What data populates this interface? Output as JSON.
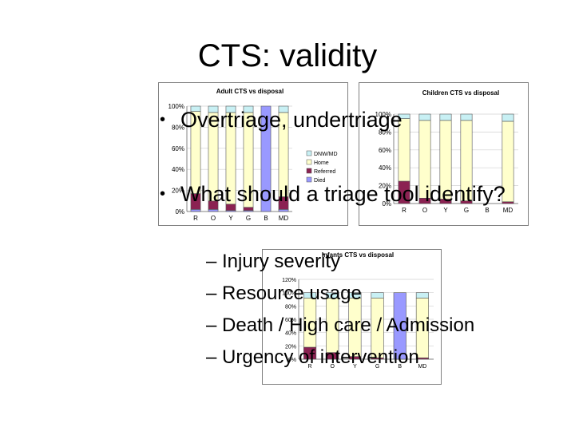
{
  "slide": {
    "title": "CTS: validity",
    "bullets": [
      "Overtriage, undertriage",
      "What should a triage tool identify?"
    ],
    "bullet_marker": "•",
    "sub_bullets": [
      "– Injury severity",
      "– Resource usage",
      "– Death / High care / Admission",
      "– Urgency of intervention"
    ]
  },
  "colors": {
    "dnw": "#c8f0f4",
    "home": "#ffffcc",
    "referred": "#8b2252",
    "died": "#9999ff",
    "frame": "#808080",
    "grid": "#d0d0d0"
  },
  "chart_data": [
    {
      "type": "bar",
      "stacked": "percent",
      "title": "Adult CTS vs disposal",
      "categories": [
        "R",
        "O",
        "Y",
        "G",
        "B",
        "MD"
      ],
      "series": [
        {
          "name": "Died",
          "values": [
            2,
            2,
            1,
            1,
            100,
            2
          ]
        },
        {
          "name": "Referred",
          "values": [
            15,
            8,
            6,
            3,
            0,
            12
          ]
        },
        {
          "name": "Home",
          "values": [
            78,
            84,
            87,
            90,
            0,
            80
          ]
        },
        {
          "name": "DNW/MD",
          "values": [
            5,
            6,
            6,
            6,
            0,
            6
          ]
        }
      ],
      "yticks": [
        "0%",
        "20%",
        "40%",
        "60%",
        "80%",
        "100%"
      ],
      "ylim": [
        0,
        100
      ],
      "legend": "right"
    },
    {
      "type": "bar",
      "stacked": "percent",
      "title": "Children CTS vs disposal",
      "categories": [
        "R",
        "O",
        "Y",
        "G",
        "B",
        "MD"
      ],
      "series": [
        {
          "name": "Died",
          "values": [
            0,
            0,
            0,
            0,
            0,
            0
          ]
        },
        {
          "name": "Referred",
          "values": [
            25,
            6,
            5,
            3,
            0,
            2
          ]
        },
        {
          "name": "Home",
          "values": [
            70,
            87,
            88,
            90,
            0,
            90
          ]
        },
        {
          "name": "DNW/MD",
          "values": [
            5,
            7,
            7,
            7,
            0,
            8
          ]
        }
      ],
      "yticks": [
        "0%",
        "20%",
        "40%",
        "60%",
        "80%",
        "100%"
      ],
      "ylim": [
        0,
        100
      ]
    },
    {
      "type": "bar",
      "stacked": "percent",
      "title": "Infants CTS vs disposal",
      "categories": [
        "R",
        "O",
        "Y",
        "G",
        "B",
        "MD"
      ],
      "series": [
        {
          "name": "Died",
          "values": [
            0,
            0,
            0,
            0,
            100,
            0
          ]
        },
        {
          "name": "Referred",
          "values": [
            18,
            10,
            4,
            2,
            0,
            2
          ]
        },
        {
          "name": "Home",
          "values": [
            74,
            82,
            88,
            90,
            0,
            90
          ]
        },
        {
          "name": "DNW/MD",
          "values": [
            8,
            8,
            8,
            8,
            0,
            8
          ]
        }
      ],
      "yticks": [
        "0%",
        "20%",
        "40%",
        "60%",
        "80%",
        "100%",
        "120%"
      ],
      "ylim": [
        0,
        120
      ]
    }
  ]
}
